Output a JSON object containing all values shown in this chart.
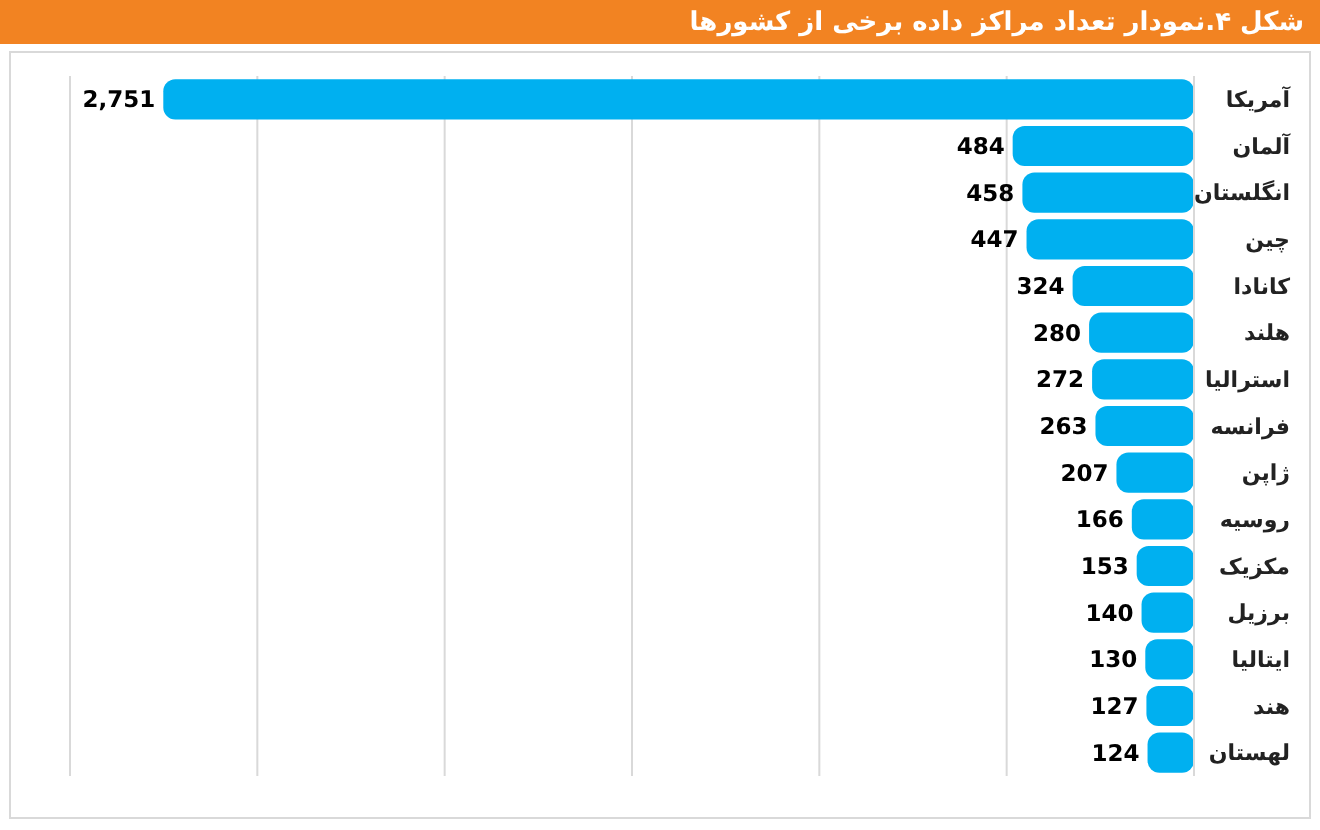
{
  "chart_data": {
    "type": "bar",
    "orientation": "horizontal",
    "title": "شکل ۴.نمودار تعداد مراکز داده برخی از کشورها",
    "categories": [
      "آمریکا",
      "آلمان",
      "انگلستان",
      "چین",
      "کانادا",
      "هلند",
      "استرالیا",
      "فرانسه",
      "ژاپن",
      "روسیه",
      "مکزیک",
      "برزیل",
      "ایتالیا",
      "هند",
      "لهستان"
    ],
    "values": [
      2751,
      484,
      458,
      447,
      324,
      280,
      272,
      263,
      207,
      166,
      153,
      140,
      130,
      127,
      124
    ],
    "value_labels": [
      "2,751",
      "484",
      "458",
      "447",
      "324",
      "280",
      "272",
      "263",
      "207",
      "166",
      "153",
      "140",
      "130",
      "127",
      "124"
    ],
    "color": "#00b0f0",
    "xlim": [
      3000,
      0
    ],
    "xticks": [
      {
        "value": 0,
        "label": null
      },
      {
        "value": 500,
        "label": null
      },
      {
        "value": 1000,
        "label": null
      },
      {
        "value": 1500,
        "label": null
      },
      {
        "value": 2000,
        "label": null
      },
      {
        "value": 2500,
        "label": null
      },
      {
        "value": 3000,
        "label": null
      }
    ],
    "grid": "x",
    "tick_labels": "y"
  }
}
